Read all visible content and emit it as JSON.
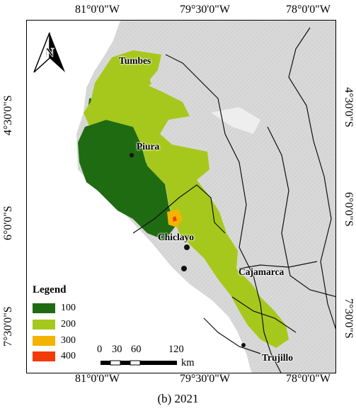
{
  "coords": {
    "top": [
      "81°0'0\"W",
      "79°30'0\"W",
      "78°0'0\"W"
    ],
    "bottom": [
      "81°0'0\"W",
      "79°30'0\"W",
      "78°0'0\"W"
    ],
    "left": [
      "4°30'0\"S",
      "6°0'0\"S",
      "7°30'0\"S"
    ],
    "right": [
      "4°30'0\"S",
      "6°0'0\"S",
      "7°30'0\"S"
    ]
  },
  "cities": [
    "Tumbes",
    "Piura",
    "Chiclayo",
    "Cajamarca",
    "Trujillo"
  ],
  "north_arrow": {
    "letter": "N",
    "icon": "north-arrow-icon"
  },
  "legend": {
    "title": "Legend",
    "items": [
      {
        "label": "100",
        "color": "#1e6b12"
      },
      {
        "label": "200",
        "color": "#a6c81c"
      },
      {
        "label": "300",
        "color": "#f2b400"
      },
      {
        "label": "400",
        "color": "#f23a0a"
      }
    ]
  },
  "scale_bar": {
    "ticks": [
      "0",
      "30",
      "60",
      "120"
    ],
    "unit": "km"
  },
  "caption": "(b) 2021",
  "colors": {
    "background_terrain": "#dcdcdc",
    "ocean": "#ffffff",
    "border": "#000000"
  }
}
